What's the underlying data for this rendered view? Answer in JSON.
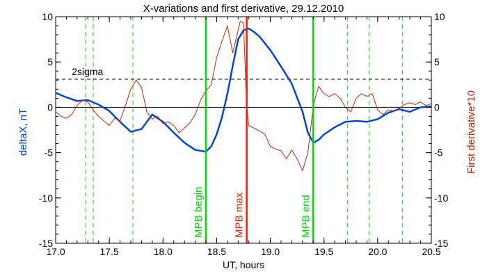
{
  "chart_data": {
    "type": "line",
    "title": "X-variations and first derivative, 29.12.2010",
    "xlabel": "UT, hours",
    "ylabel_left": "deltaX, nT",
    "ylabel_right": "First derivative*10",
    "xlim": [
      17.0,
      20.5
    ],
    "ylim": [
      -15,
      10
    ],
    "xticks": [
      17.0,
      17.5,
      18.0,
      18.5,
      19.0,
      19.5,
      20.0,
      20.5
    ],
    "xtick_labels": [
      "17.0",
      "17.5",
      "18.0",
      "18.5",
      "19.0",
      "19.5",
      "20.0",
      "20.5"
    ],
    "yticks": [
      -15,
      -10,
      -5,
      0,
      5,
      10
    ],
    "ytick_labels": [
      "-15",
      "-10",
      "-5",
      "0",
      "5",
      "10"
    ],
    "sigma_level": 3.1,
    "sigma_label": "2sigma",
    "dashed_lines_x": [
      17.28,
      17.35,
      17.72,
      19.72,
      19.92,
      20.23
    ],
    "markers": [
      {
        "x": 18.4,
        "label": "MPB begin",
        "color": "#00dd00"
      },
      {
        "x": 18.78,
        "label": "MPB max",
        "color": "#ee2200"
      },
      {
        "x": 19.4,
        "label": "MPB end",
        "color": "#00dd00"
      }
    ],
    "series": [
      {
        "name": "deltaX, nT",
        "color": "#0044dd",
        "x": [
          17.0,
          17.1,
          17.2,
          17.3,
          17.4,
          17.5,
          17.6,
          17.7,
          17.8,
          17.9,
          18.0,
          18.1,
          18.2,
          18.3,
          18.4,
          18.45,
          18.5,
          18.55,
          18.6,
          18.65,
          18.7,
          18.75,
          18.8,
          18.85,
          18.9,
          19.0,
          19.1,
          19.2,
          19.3,
          19.35,
          19.4,
          19.45,
          19.5,
          19.6,
          19.7,
          19.8,
          19.9,
          20.0,
          20.1,
          20.2,
          20.3,
          20.4,
          20.5
        ],
        "y": [
          1.6,
          1.1,
          0.7,
          0.8,
          0.3,
          -0.4,
          -1.6,
          -2.7,
          -2.4,
          -0.8,
          -1.6,
          -2.8,
          -3.9,
          -4.7,
          -4.9,
          -4.3,
          -3.0,
          -1.1,
          1.5,
          4.6,
          7.5,
          8.5,
          8.7,
          8.3,
          7.8,
          6.3,
          4.5,
          2.6,
          -0.5,
          -2.8,
          -3.9,
          -3.6,
          -3.0,
          -2.2,
          -1.6,
          -1.5,
          -1.6,
          -1.3,
          -0.6,
          -0.2,
          -0.5,
          0.0,
          0.1
        ]
      },
      {
        "name": "First derivative*10",
        "color": "#cc2200",
        "x": [
          17.0,
          17.05,
          17.1,
          17.15,
          17.2,
          17.25,
          17.3,
          17.35,
          17.4,
          17.45,
          17.5,
          17.55,
          17.6,
          17.65,
          17.7,
          17.75,
          17.8,
          17.85,
          17.9,
          17.95,
          18.0,
          18.05,
          18.1,
          18.15,
          18.2,
          18.25,
          18.3,
          18.35,
          18.4,
          18.45,
          18.5,
          18.55,
          18.6,
          18.65,
          18.68,
          18.72,
          18.75,
          18.78,
          18.8,
          18.85,
          18.9,
          18.95,
          19.0,
          19.05,
          19.1,
          19.15,
          19.2,
          19.25,
          19.3,
          19.35,
          19.4,
          19.45,
          19.5,
          19.55,
          19.6,
          19.65,
          19.7,
          19.75,
          19.8,
          19.85,
          19.9,
          19.95,
          20.0,
          20.05,
          20.1,
          20.15,
          20.2,
          20.25,
          20.3,
          20.35,
          20.4,
          20.45,
          20.5
        ],
        "y": [
          -0.5,
          -1.0,
          -1.2,
          -0.8,
          0.2,
          0.8,
          0.6,
          -0.3,
          -1.0,
          -1.5,
          -2.0,
          -1.2,
          -1.5,
          0.2,
          2.0,
          3.0,
          2.2,
          -0.5,
          -1.3,
          -1.0,
          -1.8,
          -1.6,
          -2.0,
          -2.8,
          -2.3,
          -1.7,
          -0.8,
          0.8,
          1.8,
          2.5,
          5.5,
          7.3,
          9.0,
          6.0,
          7.5,
          9.5,
          9.3,
          0.0,
          -2.0,
          -2.3,
          -2.6,
          -3.0,
          -4.3,
          -4.6,
          -4.8,
          -5.7,
          -4.7,
          -5.7,
          -7.0,
          -5.0,
          0.2,
          2.3,
          1.5,
          1.2,
          1.5,
          1.0,
          0.0,
          -0.5,
          1.0,
          1.5,
          1.2,
          1.5,
          -0.3,
          -0.8,
          -0.3,
          -0.4,
          -0.1,
          0.3,
          0.5,
          0.3,
          0.6,
          0.2,
          0.4
        ]
      }
    ],
    "grid": false,
    "colors": {
      "blue": "#0044dd",
      "red": "#cc2200",
      "green": "#00dd00",
      "marker_red": "#ee2200"
    }
  }
}
